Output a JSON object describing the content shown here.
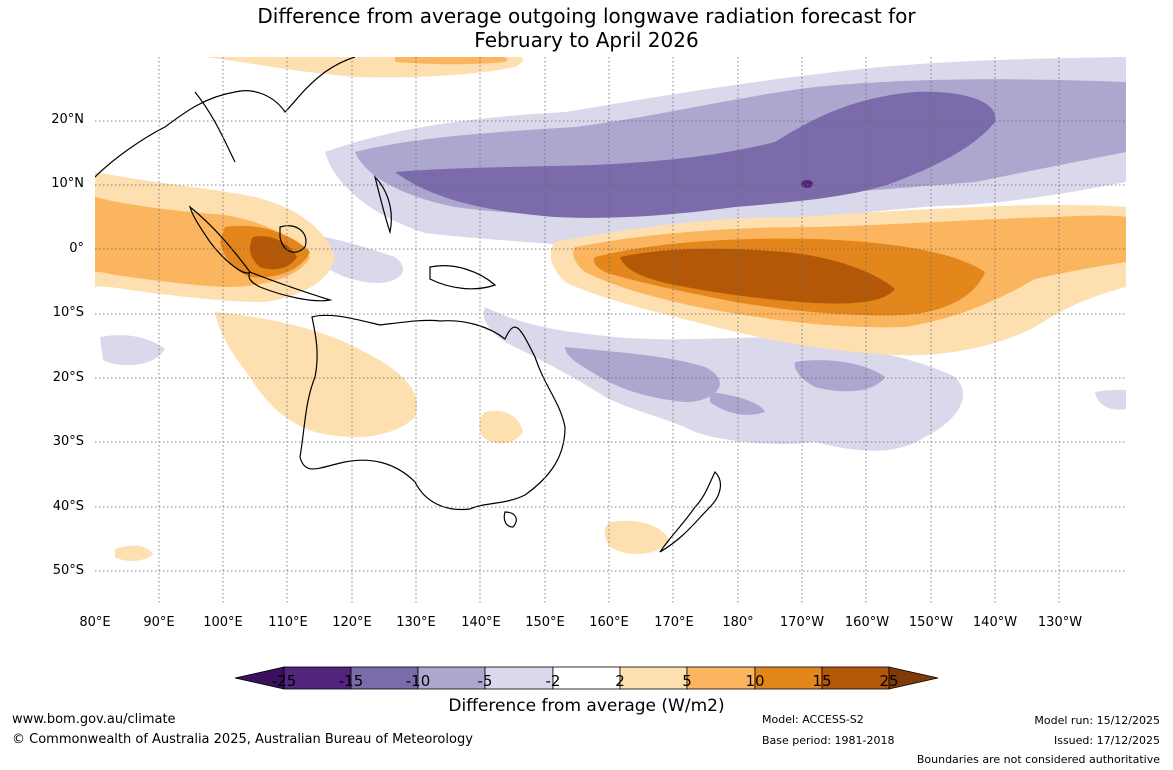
{
  "title": {
    "line1": "Difference from average outgoing longwave radiation forecast for",
    "line2": "February to April 2026"
  },
  "map": {
    "latitude_labels": [
      "20°N",
      "10°N",
      "0°",
      "10°S",
      "20°S",
      "30°S",
      "40°S",
      "50°S"
    ],
    "longitude_labels": [
      "80°E",
      "90°E",
      "100°E",
      "110°E",
      "120°E",
      "130°E",
      "140°E",
      "150°E",
      "160°E",
      "170°E",
      "180°",
      "170°W",
      "160°W",
      "150°W",
      "140°W",
      "130°W"
    ],
    "gridline_color": "#666666",
    "coastline_color": "#000000"
  },
  "legend": {
    "title": "Difference from average (W/m2)",
    "tick_labels": [
      "-25",
      "-15",
      "-10",
      "-5",
      "-2",
      "2",
      "5",
      "10",
      "15",
      "25"
    ],
    "bin_colors": [
      "#3a0f5e",
      "#54257f",
      "#7b6baa",
      "#ada6cf",
      "#d9d9eb",
      "#ffffff",
      "#fedfb0",
      "#fbb55e",
      "#e3861c",
      "#b35806",
      "#7f3b08"
    ]
  },
  "footer": {
    "website": "www.bom.gov.au/climate",
    "copyright": "© Commonwealth of Australia 2025, Australian Bureau of Meteorology",
    "model": "Model: ACCESS-S2",
    "base_period": "Base period: 1981-2018",
    "model_run": "Model run: 15/12/2025",
    "issued": "Issued: 17/12/2025",
    "disclaimer": "Boundaries are not considered authoritative"
  }
}
